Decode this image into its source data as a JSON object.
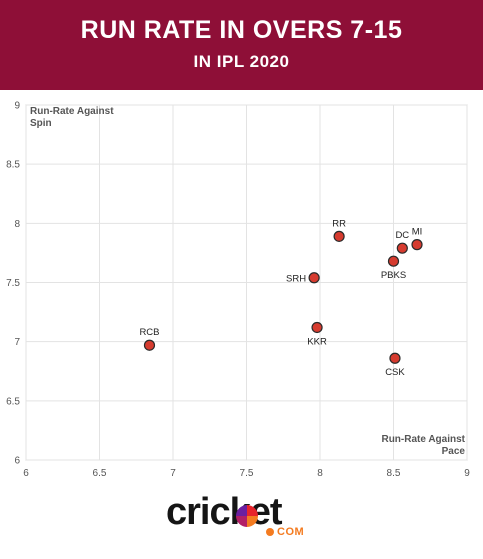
{
  "header": {
    "title": "RUN RATE IN OVERS 7-15",
    "subtitle": "IN IPL 2020"
  },
  "chart_data": {
    "type": "scatter",
    "title": "RUN RATE IN OVERS 7-15",
    "subtitle": "IN IPL 2020",
    "xlabel": "Run-Rate Against Pace",
    "ylabel": "Run-Rate Against Spin",
    "xlim": [
      6,
      9
    ],
    "ylim": [
      6,
      9
    ],
    "xticks": [
      "6",
      "6.5",
      "7",
      "7.5",
      "8",
      "8.5",
      "9"
    ],
    "yticks": [
      "6",
      "6.5",
      "7",
      "7.5",
      "8",
      "8.5",
      "9"
    ],
    "grid": true,
    "point_color": "#d63b2f",
    "points": [
      {
        "label": "RR",
        "x": 8.13,
        "y": 7.89,
        "label_pos": "above"
      },
      {
        "label": "DC",
        "x": 8.56,
        "y": 7.79,
        "label_pos": "above"
      },
      {
        "label": "MI",
        "x": 8.66,
        "y": 7.82,
        "label_pos": "above"
      },
      {
        "label": "PBKS",
        "x": 8.5,
        "y": 7.68,
        "label_pos": "below"
      },
      {
        "label": "SRH",
        "x": 7.96,
        "y": 7.54,
        "label_pos": "left"
      },
      {
        "label": "KKR",
        "x": 7.98,
        "y": 7.12,
        "label_pos": "below"
      },
      {
        "label": "RCB",
        "x": 6.84,
        "y": 6.97,
        "label_pos": "above"
      },
      {
        "label": "CSK",
        "x": 8.51,
        "y": 6.86,
        "label_pos": "below"
      }
    ]
  },
  "brand": {
    "logo_word": "cricket",
    "logo_suffix": "COM",
    "accent_color": "#8e0f37",
    "logo_accent": "#f47b20"
  }
}
